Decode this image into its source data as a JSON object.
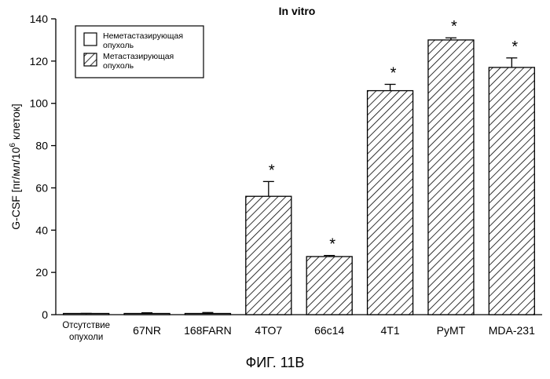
{
  "caption": "ФИГ. 11В",
  "chart_data": {
    "type": "bar",
    "title": "In vitro",
    "ylabel": "G-CSF [пг/мл/10^6 клеток]",
    "ylabel_parts": {
      "before": "G-CSF [пг/мл/10",
      "sup": "6",
      "after": " клеток]"
    },
    "ylim": [
      0,
      140
    ],
    "yticks": [
      0,
      20,
      40,
      60,
      80,
      100,
      120,
      140
    ],
    "grid": false,
    "legend_position": "top-left",
    "legend": [
      {
        "label": "Неметастазирующая опухоль",
        "label_lines": [
          "Неметастазирующая",
          "опухоль"
        ],
        "pattern": "none"
      },
      {
        "label": "Метастазирующая опухоль",
        "label_lines": [
          "Метастазирующая",
          "опухоль"
        ],
        "pattern": "hatched"
      }
    ],
    "categories": [
      [
        "Отсутствие",
        "опухоли"
      ],
      [
        "67NR"
      ],
      [
        "168FARN"
      ],
      [
        "4TO7"
      ],
      [
        "66c14"
      ],
      [
        "4T1"
      ],
      [
        "PyMT"
      ],
      [
        "MDA-231"
      ]
    ],
    "values": [
      0.3,
      0.5,
      0.5,
      56,
      27.5,
      106,
      130,
      117
    ],
    "errors": [
      0.3,
      0.4,
      0.5,
      7,
      0.5,
      3,
      1,
      4.5
    ],
    "metastatic": [
      false,
      false,
      false,
      true,
      true,
      true,
      true,
      true
    ],
    "significance_marks": [
      "",
      "",
      "",
      "*",
      "*",
      "*",
      "*",
      "*"
    ]
  }
}
